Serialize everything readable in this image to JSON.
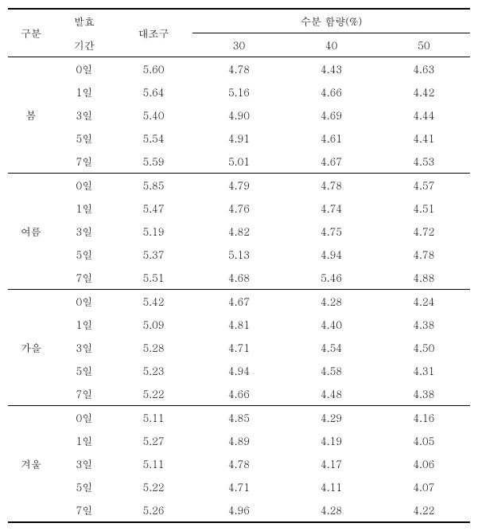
{
  "headers": {
    "col1": "구분",
    "col2a": "발효",
    "col2b": "기간",
    "col3": "대조구",
    "group": "수분 함량(%)",
    "sub30": "30",
    "sub40": "40",
    "sub50": "50"
  },
  "groups": [
    {
      "label": "봄",
      "rows": [
        {
          "period": "0일",
          "control": "5.60",
          "v30": "4.78",
          "v40": "4.43",
          "v50": "4.63"
        },
        {
          "period": "1일",
          "control": "5.64",
          "v30": "5.16",
          "v40": "4.66",
          "v50": "4.42"
        },
        {
          "period": "3일",
          "control": "5.40",
          "v30": "4.90",
          "v40": "4.69",
          "v50": "4.44"
        },
        {
          "period": "5일",
          "control": "5.54",
          "v30": "4.91",
          "v40": "4.61",
          "v50": "4.41"
        },
        {
          "period": "7일",
          "control": "5.59",
          "v30": "5.01",
          "v40": "4.67",
          "v50": "4.53"
        }
      ]
    },
    {
      "label": "여름",
      "rows": [
        {
          "period": "0일",
          "control": "5.85",
          "v30": "4.79",
          "v40": "4.78",
          "v50": "4.57"
        },
        {
          "period": "1일",
          "control": "5.47",
          "v30": "4.76",
          "v40": "4.74",
          "v50": "4.51"
        },
        {
          "period": "3일",
          "control": "5.19",
          "v30": "4.82",
          "v40": "4.75",
          "v50": "4.72"
        },
        {
          "period": "5일",
          "control": "5.37",
          "v30": "5.13",
          "v40": "4.94",
          "v50": "4.78"
        },
        {
          "period": "7일",
          "control": "5.51",
          "v30": "4.68",
          "v40": "5.46",
          "v50": "4.88"
        }
      ]
    },
    {
      "label": "가을",
      "rows": [
        {
          "period": "0일",
          "control": "5.42",
          "v30": "4.67",
          "v40": "4.28",
          "v50": "4.24"
        },
        {
          "period": "1일",
          "control": "5.09",
          "v30": "4.81",
          "v40": "4.40",
          "v50": "4.38"
        },
        {
          "period": "3일",
          "control": "5.28",
          "v30": "4.71",
          "v40": "4.54",
          "v50": "4.50"
        },
        {
          "period": "5일",
          "control": "5.23",
          "v30": "4.94",
          "v40": "4.58",
          "v50": "4.31"
        },
        {
          "period": "7일",
          "control": "5.22",
          "v30": "4.66",
          "v40": "4.48",
          "v50": "4.38"
        }
      ]
    },
    {
      "label": "겨울",
      "rows": [
        {
          "period": "0일",
          "control": "5.11",
          "v30": "4.85",
          "v40": "4.29",
          "v50": "4.16"
        },
        {
          "period": "1일",
          "control": "5.27",
          "v30": "4.89",
          "v40": "4.19",
          "v50": "4.05"
        },
        {
          "period": "3일",
          "control": "5.11",
          "v30": "4.78",
          "v40": "4.17",
          "v50": "4.06"
        },
        {
          "period": "5일",
          "control": "5.22",
          "v30": "4.71",
          "v40": "4.11",
          "v50": "4.07"
        },
        {
          "period": "7일",
          "control": "5.26",
          "v30": "4.96",
          "v40": "4.28",
          "v50": "4.22"
        }
      ]
    }
  ]
}
